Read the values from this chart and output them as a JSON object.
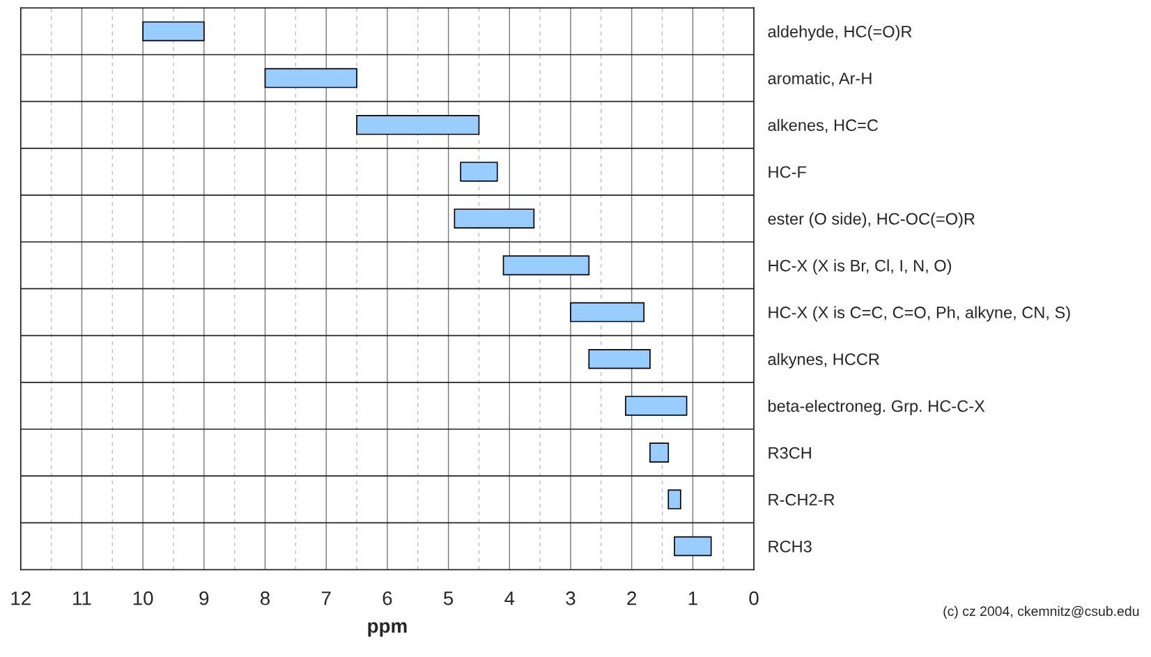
{
  "chart_data": {
    "type": "bar",
    "orientation": "horizontal",
    "xlabel": "ppm",
    "categories": [
      "aldehyde, HC(=O)R",
      "aromatic, Ar-H",
      "alkenes, HC=C",
      "HC-F",
      "ester (O side), HC-OC(=O)R",
      "HC-X (X is Br, Cl, I, N, O)",
      "HC-X (X is C=C, C=O, Ph, alkyne, CN, S)",
      "alkynes, HCCR",
      "beta-electroneg. Grp. HC-C-X",
      "R3CH",
      "R-CH2-R",
      "RCH3"
    ],
    "base": [
      9.0,
      6.5,
      4.5,
      4.2,
      3.6,
      2.7,
      1.8,
      1.7,
      1.1,
      1.4,
      1.2,
      0.7
    ],
    "values": [
      1.0,
      1.5,
      2.0,
      0.6,
      1.3,
      1.4,
      1.2,
      1.0,
      1.0,
      0.3,
      0.2,
      0.6
    ],
    "color": "#99ccff",
    "xlim": [
      12,
      0
    ],
    "xticks": [
      12,
      {
        "value": 11.5,
        "label": null
      },
      11,
      {
        "value": 10.5,
        "label": null
      },
      10,
      {
        "value": 9.5,
        "label": null
      },
      9,
      {
        "value": 8.5,
        "label": null
      },
      8,
      {
        "value": 7.5,
        "label": null
      },
      7,
      {
        "value": 6.5,
        "label": null
      },
      6,
      {
        "value": 5.5,
        "label": null
      },
      5,
      {
        "value": 4.5,
        "label": null
      },
      4,
      {
        "value": 3.5,
        "label": null
      },
      3,
      {
        "value": 2.5,
        "label": null
      },
      2,
      {
        "value": 1.5,
        "label": null
      },
      1,
      {
        "value": 0.5,
        "label": null
      },
      0
    ],
    "grid": true,
    "annotations": [
      "(c) cz 2004, ckemnitz@csub.edu"
    ]
  }
}
